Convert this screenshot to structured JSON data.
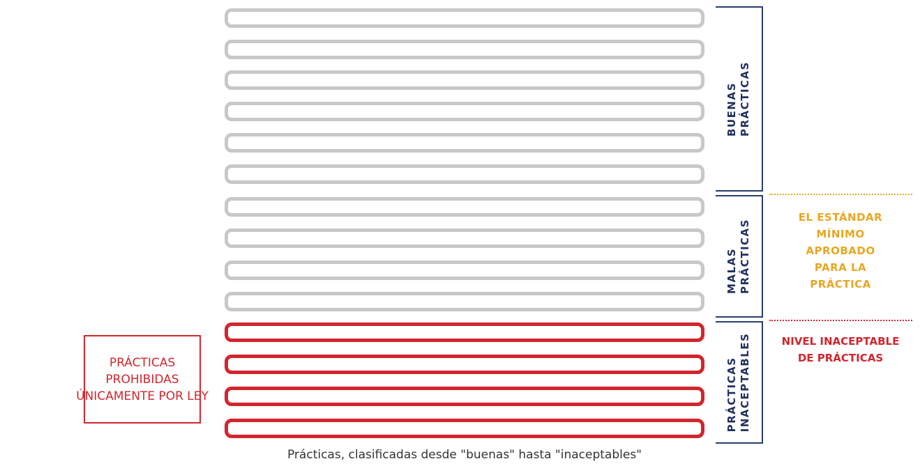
{
  "good_label": [
    "BUENAS",
    "PRÁCTICAS"
  ],
  "bad_label": [
    "MALAS",
    "PRÁCTICAS"
  ],
  "unacceptable_label": [
    "PRÁCTICAS",
    "INACEPTABLES"
  ],
  "standard_text": [
    "EL ESTÁNDAR",
    "MÍNIMO",
    "APROBADO",
    "PARA LA",
    "PRÁCTICA"
  ],
  "unacceptable_level_text": [
    "NIVEL INACEPTABLE",
    "DE PRÁCTICAS"
  ],
  "prohibited_text": [
    "PRÁCTICAS",
    "PROHIBIDAS",
    "ÚNICAMENTE POR LEY"
  ],
  "caption": "Prácticas, clasificadas desde \"buenas\" hasta \"inaceptables\"",
  "colors": {
    "good_bar": "#c8c8c8",
    "unacceptable_bar": "#d0262e",
    "bracket": "#2a3e6b",
    "standard": "#e9a722"
  }
}
